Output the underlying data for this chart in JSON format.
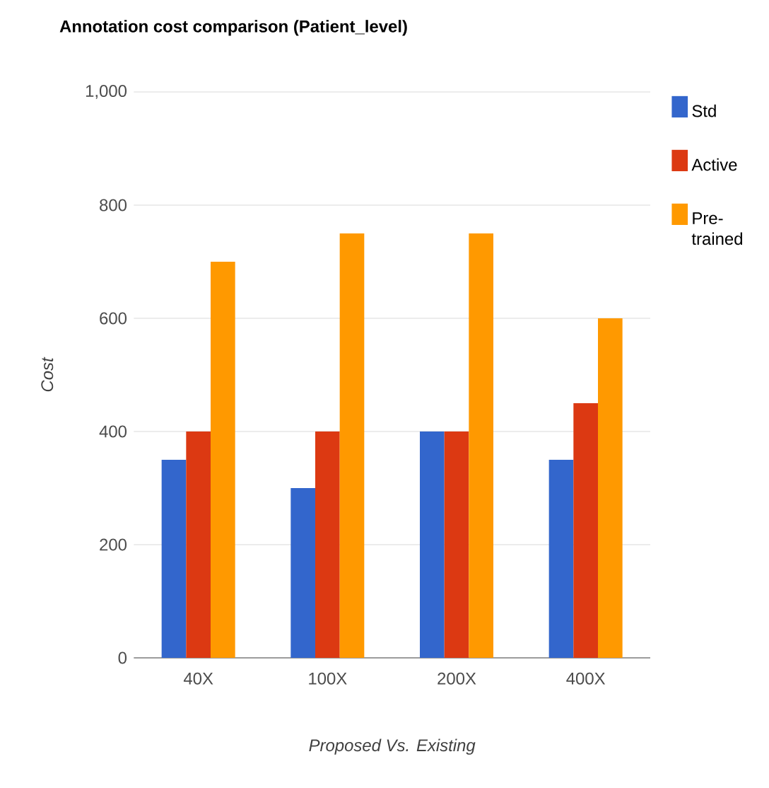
{
  "chart_data": {
    "type": "bar",
    "title": "Annotation cost comparison (Patient_level)",
    "xlabel": "Proposed Vs. Existing",
    "ylabel": "Cost",
    "categories": [
      "40X",
      "100X",
      "200X",
      "400X"
    ],
    "series": [
      {
        "name": "Std",
        "color": "#3366cc",
        "values": [
          350,
          300,
          400,
          350
        ]
      },
      {
        "name": "Active",
        "color": "#dc3912",
        "values": [
          400,
          400,
          400,
          450
        ]
      },
      {
        "name": "Pre-trained",
        "color": "#ff9900",
        "values": [
          700,
          750,
          750,
          600
        ]
      }
    ],
    "ylim": [
      0,
      1000
    ],
    "yticks": [
      0,
      200,
      400,
      600,
      800,
      {
        "value": 1000,
        "label": "1,000"
      }
    ],
    "grid": "y",
    "legend": "top right"
  }
}
